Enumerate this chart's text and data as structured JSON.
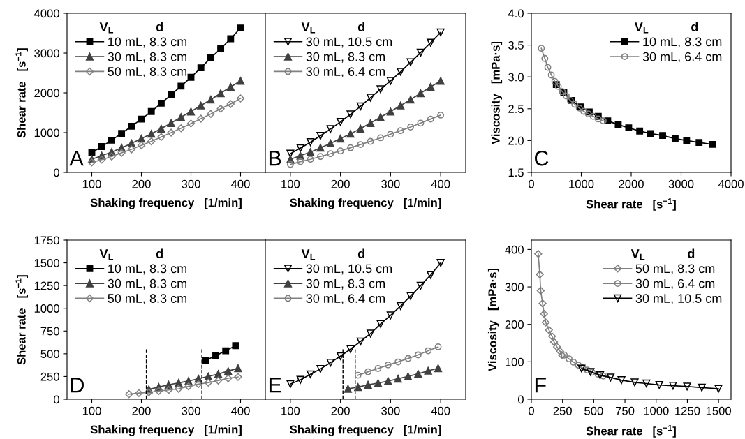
{
  "chart_data": [
    {
      "type": "line",
      "xlabel": "Shaking frequency   [1/min]",
      "ylabel": "Shear rate   [s$^{−1}$]",
      "legend_title": "V$_{L}$            d",
      "legend": "top left",
      "annotations": [
        "A"
      ],
      "xlim": [
        50,
        450
      ],
      "xticks": [
        100,
        200,
        300,
        400
      ],
      "ylim": [
        0,
        4000
      ],
      "yticks": [
        0,
        1000,
        2000,
        3000,
        4000
      ],
      "tick_labels": "xy",
      "series": [
        {
          "name": "10 mL, 8.3 cm",
          "color": "#000000",
          "marker": "square",
          "x": [
            100,
            120,
            140,
            160,
            180,
            200,
            220,
            240,
            260,
            280,
            300,
            320,
            340,
            360,
            380,
            400
          ],
          "values": [
            500,
            650,
            810,
            980,
            1160,
            1340,
            1530,
            1740,
            1950,
            2170,
            2390,
            2630,
            2880,
            3110,
            3360,
            3630
          ]
        },
        {
          "name": "30 mL, 8.3 cm",
          "color": "#404040",
          "marker": "triangle",
          "x": [
            100,
            120,
            140,
            160,
            180,
            200,
            220,
            240,
            260,
            280,
            300,
            320,
            340,
            360,
            380,
            400
          ],
          "values": [
            330,
            420,
            510,
            620,
            730,
            850,
            970,
            1100,
            1240,
            1390,
            1530,
            1680,
            1830,
            1990,
            2150,
            2300
          ]
        },
        {
          "name": "50 mL, 8.3 cm",
          "color": "#808080",
          "marker": "diamond",
          "x": [
            100,
            120,
            140,
            160,
            180,
            200,
            220,
            240,
            260,
            280,
            300,
            320,
            340,
            360,
            380,
            400
          ],
          "values": [
            250,
            320,
            400,
            490,
            580,
            680,
            780,
            890,
            1000,
            1110,
            1230,
            1350,
            1470,
            1600,
            1720,
            1860
          ]
        }
      ]
    },
    {
      "type": "line",
      "xlabel": "Shaking frequency   [1/min]",
      "legend_title": "V$_{L}$            d",
      "legend": "top left",
      "annotations": [
        "B"
      ],
      "xlim": [
        50,
        450
      ],
      "xticks": [
        100,
        200,
        300,
        400
      ],
      "ylim": [
        0,
        4000
      ],
      "tick_labels": "x",
      "series": [
        {
          "name": "30 mL, 10.5 cm",
          "color": "#000000",
          "marker": "triangle_down",
          "x": [
            100,
            120,
            140,
            160,
            180,
            200,
            220,
            240,
            260,
            280,
            300,
            320,
            340,
            360,
            380,
            400
          ],
          "values": [
            470,
            610,
            760,
            920,
            1090,
            1270,
            1460,
            1660,
            1880,
            2090,
            2300,
            2530,
            2770,
            3010,
            3260,
            3520
          ]
        },
        {
          "name": "30 mL, 8.3 cm",
          "color": "#404040",
          "marker": "triangle",
          "x": [
            100,
            120,
            140,
            160,
            180,
            200,
            220,
            240,
            260,
            280,
            300,
            320,
            340,
            360,
            380,
            400
          ],
          "values": [
            330,
            420,
            510,
            620,
            730,
            850,
            970,
            1100,
            1240,
            1390,
            1530,
            1680,
            1830,
            1990,
            2150,
            2300
          ]
        },
        {
          "name": "30 mL, 6.4 cm",
          "color": "#808080",
          "marker": "circle",
          "x": [
            100,
            120,
            140,
            160,
            180,
            200,
            220,
            240,
            260,
            280,
            300,
            320,
            340,
            360,
            380,
            400
          ],
          "values": [
            200,
            270,
            330,
            400,
            470,
            540,
            620,
            700,
            780,
            870,
            960,
            1050,
            1140,
            1240,
            1340,
            1440
          ]
        }
      ]
    },
    {
      "type": "line",
      "xlabel": "Shear rate   [s$^{−1}$]",
      "ylabel": "Viscosity   [mPa·s]",
      "legend_title": "V$_{L}$            d",
      "legend": "top right",
      "annotations": [
        "C"
      ],
      "xlim": [
        0,
        4000
      ],
      "xticks": [
        0,
        1000,
        2000,
        3000,
        4000
      ],
      "ylim": [
        1.5,
        4.0
      ],
      "yticks": [
        {
          "value": 1.5,
          "label": "1.5"
        },
        {
          "value": 2.0,
          "label": "2.0"
        },
        {
          "value": 2.5,
          "label": "2.5"
        },
        {
          "value": 3.0,
          "label": "3.0"
        },
        {
          "value": 3.5,
          "label": "3.5"
        },
        {
          "value": 4.0,
          "label": "4.0"
        }
      ],
      "tick_labels": "xy",
      "series": [
        {
          "name": "10 mL, 8.3 cm",
          "color": "#000000",
          "marker": "square",
          "x": [
            500,
            650,
            810,
            980,
            1160,
            1340,
            1530,
            1740,
            1950,
            2170,
            2390,
            2630,
            2880,
            3110,
            3360,
            3630
          ],
          "values": [
            2.88,
            2.75,
            2.63,
            2.53,
            2.45,
            2.38,
            2.31,
            2.25,
            2.2,
            2.15,
            2.11,
            2.08,
            2.03,
            2.0,
            1.97,
            1.94
          ]
        },
        {
          "name": "30 mL, 6.4 cm",
          "color": "#808080",
          "marker": "circle",
          "x": [
            200,
            270,
            330,
            400,
            470,
            540,
            620,
            700,
            780,
            870,
            960,
            1050,
            1140,
            1240,
            1340,
            1440
          ],
          "values": [
            3.45,
            3.29,
            3.15,
            3.03,
            2.93,
            2.85,
            2.77,
            2.7,
            2.63,
            2.57,
            2.51,
            2.46,
            2.42,
            2.38,
            2.34,
            2.31
          ]
        }
      ]
    },
    {
      "type": "line",
      "xlabel": "Shaking frequency   [1/min]",
      "ylabel": "Shear rate   [s$^{−1}$]",
      "legend_title": "V$_{L}$            d",
      "legend": "top left",
      "annotations": [
        "D"
      ],
      "xlim": [
        50,
        450
      ],
      "xticks": [
        100,
        200,
        300,
        400
      ],
      "ylim": [
        0,
        1750
      ],
      "yticks": [
        0,
        250,
        500,
        750,
        1000,
        1250,
        1500,
        1750
      ],
      "tick_labels": "xy",
      "ref_lines": [
        {
          "axis": "x",
          "value": 322,
          "color": "#000000",
          "line_style": "dashed"
        },
        {
          "axis": "x",
          "value": 210,
          "color": "#000000",
          "line_style": "dashed"
        }
      ],
      "series": [
        {
          "name": "10 mL, 8.3 cm",
          "color": "#000000",
          "marker": "square",
          "x": [
            330,
            350,
            370,
            390
          ],
          "values": [
            428,
            479,
            533,
            589
          ]
        },
        {
          "name": "30 mL, 8.3 cm",
          "color": "#404040",
          "marker": "triangle",
          "x": [
            215,
            235,
            255,
            275,
            295,
            315,
            335,
            355,
            375,
            395
          ],
          "values": [
            108,
            133,
            159,
            179,
            200,
            225,
            251,
            277,
            310,
            341
          ]
        },
        {
          "name": "50 mL, 8.3 cm",
          "color": "#808080",
          "marker": "diamond",
          "x": [
            175,
            195,
            215,
            235,
            255,
            275,
            295,
            315,
            335,
            355,
            375,
            395
          ],
          "values": [
            55,
            68,
            75,
            90,
            102,
            115,
            141,
            166,
            182,
            205,
            230,
            245
          ]
        }
      ]
    },
    {
      "type": "line",
      "xlabel": "Shaking frequency   [1/min]",
      "legend_title": "V$_{L}$            d",
      "legend": "top left",
      "annotations": [
        "E"
      ],
      "xlim": [
        50,
        450
      ],
      "xticks": [
        100,
        200,
        300,
        400
      ],
      "ylim": [
        0,
        1750
      ],
      "tick_labels": "x",
      "ref_lines": [
        {
          "axis": "x",
          "value": 205,
          "color": "#000000",
          "line_style": "dashed"
        },
        {
          "axis": "x",
          "value": 230,
          "color": "#808080",
          "line_style": "dashed"
        }
      ],
      "series": [
        {
          "name": "30 mL, 10.5 cm",
          "color": "#000000",
          "marker": "triangle_down",
          "x": [
            100,
            120,
            140,
            160,
            180,
            200,
            220,
            240,
            260,
            280,
            300,
            320,
            340,
            360,
            380,
            400
          ],
          "values": [
            167,
            213,
            274,
            333,
            402,
            474,
            551,
            635,
            722,
            828,
            922,
            1025,
            1135,
            1248,
            1366,
            1499
          ]
        },
        {
          "name": "30 mL, 8.3 cm",
          "color": "#404040",
          "marker": "triangle",
          "x": [
            215,
            235,
            255,
            275,
            295,
            315,
            335,
            355,
            375,
            395
          ],
          "values": [
            115,
            133,
            159,
            177,
            200,
            225,
            251,
            279,
            313,
            341
          ]
        },
        {
          "name": "30 mL, 6.4 cm",
          "color": "#808080",
          "marker": "circle",
          "x": [
            235,
            255,
            275,
            295,
            315,
            335,
            355,
            375,
            395
          ],
          "values": [
            264,
            302,
            338,
            377,
            410,
            448,
            487,
            533,
            576
          ]
        }
      ]
    },
    {
      "type": "line",
      "xlabel": "Shear rate   [s$^{−1}$]",
      "ylabel": "Viscosity   [mPa·s]",
      "legend_title": "V$_{L}$            d",
      "legend": "top right",
      "annotations": [
        "F"
      ],
      "xlim": [
        0,
        1600
      ],
      "xticks": [
        0,
        250,
        500,
        750,
        1000,
        1250,
        1500
      ],
      "ylim": [
        0,
        425
      ],
      "yticks": [
        0,
        100,
        200,
        300,
        400
      ],
      "tick_labels": "xy",
      "series": [
        {
          "name": "50 mL, 8.3 cm",
          "color": "#808080",
          "marker": "diamond",
          "x": [
            55,
            68,
            75,
            90,
            102,
            115,
            141,
            166,
            182,
            205,
            230,
            245
          ],
          "values": [
            388,
            333,
            290,
            256,
            228,
            205,
            185,
            168,
            153,
            140,
            128,
            118
          ]
        },
        {
          "name": "30 mL, 6.4 cm",
          "color": "#808080",
          "marker": "circle",
          "x": [
            264,
            302,
            338,
            377,
            410,
            448,
            487,
            533,
            576
          ],
          "values": [
            118,
            108,
            99,
            91,
            84,
            78,
            72,
            67,
            62
          ]
        },
        {
          "name": "30 mL, 10.5 cm",
          "color": "#000000",
          "marker": "triangle_down",
          "x": [
            402,
            474,
            551,
            635,
            722,
            828,
            922,
            1025,
            1135,
            1248,
            1366,
            1499
          ],
          "values": [
            82,
            73,
            64,
            58,
            51,
            45,
            42,
            38,
            36,
            34,
            31,
            28
          ]
        }
      ]
    }
  ]
}
